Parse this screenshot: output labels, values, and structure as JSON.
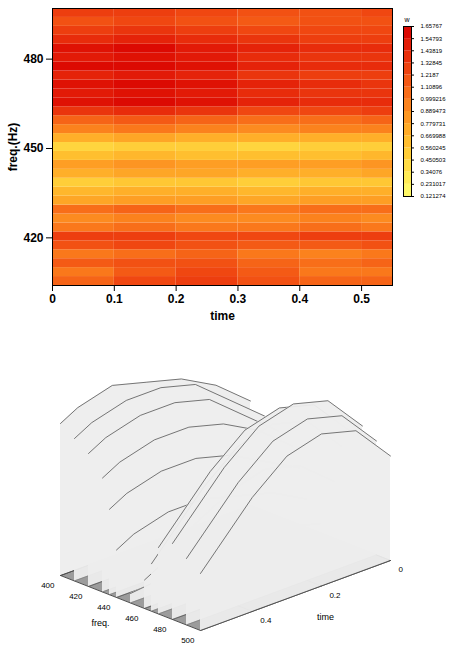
{
  "chart_data": [
    {
      "type": "heatmap",
      "xlabel": "time",
      "ylabel": "freq.(Hz)",
      "xlim": [
        0,
        0.55
      ],
      "ylim": [
        404,
        497
      ],
      "xticks": [
        0,
        0.1,
        0.2,
        0.3,
        0.4,
        0.5
      ],
      "yticks": [
        420,
        450,
        480
      ],
      "time_bins": [
        0,
        0.1,
        0.2,
        0.3,
        0.4,
        0.5,
        0.55
      ],
      "freq_bins": [
        404,
        407,
        410,
        413,
        416,
        419,
        422,
        425,
        428,
        431,
        434,
        437,
        440,
        443,
        446,
        449,
        452,
        455,
        458,
        461,
        464,
        467,
        470,
        473,
        476,
        479,
        482,
        485,
        488,
        491,
        494,
        497
      ],
      "cells": [
        [
          1.1,
          1.25,
          1.3,
          1.2,
          1.1,
          1.1
        ],
        [
          1.0,
          1.15,
          1.25,
          1.15,
          1.0,
          1.0
        ],
        [
          1.15,
          1.2,
          1.2,
          1.1,
          1.05,
          1.1
        ],
        [
          1.0,
          1.05,
          1.1,
          1.0,
          0.95,
          1.0
        ],
        [
          1.2,
          1.25,
          1.2,
          1.15,
          1.15,
          1.2
        ],
        [
          1.3,
          1.3,
          1.25,
          1.25,
          1.3,
          1.3
        ],
        [
          1.0,
          1.05,
          1.0,
          1.0,
          1.05,
          1.0
        ],
        [
          0.9,
          0.95,
          0.9,
          0.9,
          0.95,
          0.9
        ],
        [
          1.05,
          1.1,
          1.05,
          1.0,
          1.05,
          1.05
        ],
        [
          0.75,
          0.8,
          0.8,
          0.75,
          0.8,
          0.8
        ],
        [
          0.65,
          0.7,
          0.7,
          0.65,
          0.7,
          0.7
        ],
        [
          0.5,
          0.55,
          0.55,
          0.5,
          0.55,
          0.55
        ],
        [
          0.7,
          0.75,
          0.75,
          0.7,
          0.7,
          0.75
        ],
        [
          0.8,
          0.85,
          0.8,
          0.8,
          0.8,
          0.85
        ],
        [
          0.6,
          0.65,
          0.6,
          0.6,
          0.6,
          0.65
        ],
        [
          0.45,
          0.5,
          0.5,
          0.45,
          0.5,
          0.5
        ],
        [
          0.7,
          0.75,
          0.7,
          0.7,
          0.7,
          0.7
        ],
        [
          0.95,
          1.0,
          0.95,
          0.9,
          0.95,
          0.95
        ],
        [
          1.1,
          1.15,
          1.1,
          1.05,
          1.05,
          1.1
        ],
        [
          1.35,
          1.4,
          1.35,
          1.25,
          1.25,
          1.3
        ],
        [
          1.55,
          1.6,
          1.55,
          1.45,
          1.4,
          1.4
        ],
        [
          1.5,
          1.55,
          1.5,
          1.4,
          1.35,
          1.35
        ],
        [
          1.55,
          1.6,
          1.55,
          1.45,
          1.4,
          1.35
        ],
        [
          1.45,
          1.5,
          1.45,
          1.35,
          1.3,
          1.3
        ],
        [
          1.6,
          1.6,
          1.55,
          1.45,
          1.4,
          1.4
        ],
        [
          1.5,
          1.55,
          1.5,
          1.4,
          1.35,
          1.35
        ],
        [
          1.55,
          1.6,
          1.5,
          1.45,
          1.4,
          1.4
        ],
        [
          1.4,
          1.45,
          1.4,
          1.35,
          1.3,
          1.3
        ],
        [
          1.3,
          1.35,
          1.3,
          1.25,
          1.25,
          1.25
        ],
        [
          1.2,
          1.25,
          1.2,
          1.15,
          1.2,
          1.2
        ],
        [
          1.3,
          1.3,
          1.25,
          1.2,
          1.2,
          1.25
        ]
      ],
      "colorbar": {
        "label": "w",
        "range": [
          0.121274,
          1.65767
        ],
        "ticks": [
          1.65767,
          1.54793,
          1.43819,
          1.32845,
          1.2187,
          1.10896,
          0.999216,
          0.889473,
          0.779731,
          0.669988,
          0.560245,
          0.450503,
          0.34076,
          0.231017,
          0.121274
        ]
      }
    },
    {
      "type": "surface3d",
      "xlabel": "freq.",
      "ylabel": "time",
      "xlim": [
        400,
        500
      ],
      "ylim": [
        0,
        0.55
      ],
      "zlim": [
        0,
        1
      ],
      "xticks": [
        400,
        420,
        440,
        460,
        480,
        500
      ],
      "yticks": [
        0,
        0.2,
        0.4
      ],
      "freqs": [
        400,
        410,
        420,
        430,
        435,
        440,
        450,
        460,
        465,
        470,
        480,
        490,
        500
      ],
      "times": [
        0,
        0.1,
        0.2,
        0.3,
        0.4,
        0.5,
        0.55
      ],
      "z": [
        [
          0.55,
          0.7,
          0.8,
          0.85,
          0.9,
          0.85,
          0.8
        ],
        [
          0.5,
          0.65,
          0.8,
          0.85,
          0.85,
          0.8,
          0.75
        ],
        [
          0.45,
          0.6,
          0.75,
          0.8,
          0.8,
          0.75,
          0.7
        ],
        [
          0.4,
          0.55,
          0.65,
          0.7,
          0.7,
          0.65,
          0.6
        ],
        [
          0.3,
          0.4,
          0.5,
          0.55,
          0.55,
          0.5,
          0.45
        ],
        [
          0.15,
          0.25,
          0.3,
          0.35,
          0.35,
          0.3,
          0.25
        ],
        [
          0.05,
          0.1,
          0.12,
          0.1,
          0.08,
          0.06,
          0.05
        ],
        [
          0.3,
          0.45,
          0.5,
          0.45,
          0.35,
          0.2,
          0.15
        ],
        [
          0.5,
          0.7,
          0.75,
          0.7,
          0.55,
          0.35,
          0.25
        ],
        [
          0.6,
          0.8,
          0.85,
          0.8,
          0.65,
          0.45,
          0.35
        ],
        [
          0.65,
          0.85,
          0.9,
          0.85,
          0.7,
          0.5,
          0.4
        ],
        [
          0.6,
          0.8,
          0.85,
          0.8,
          0.65,
          0.45,
          0.35
        ],
        [
          0.55,
          0.75,
          0.8,
          0.75,
          0.6,
          0.4,
          0.3
        ]
      ]
    }
  ]
}
